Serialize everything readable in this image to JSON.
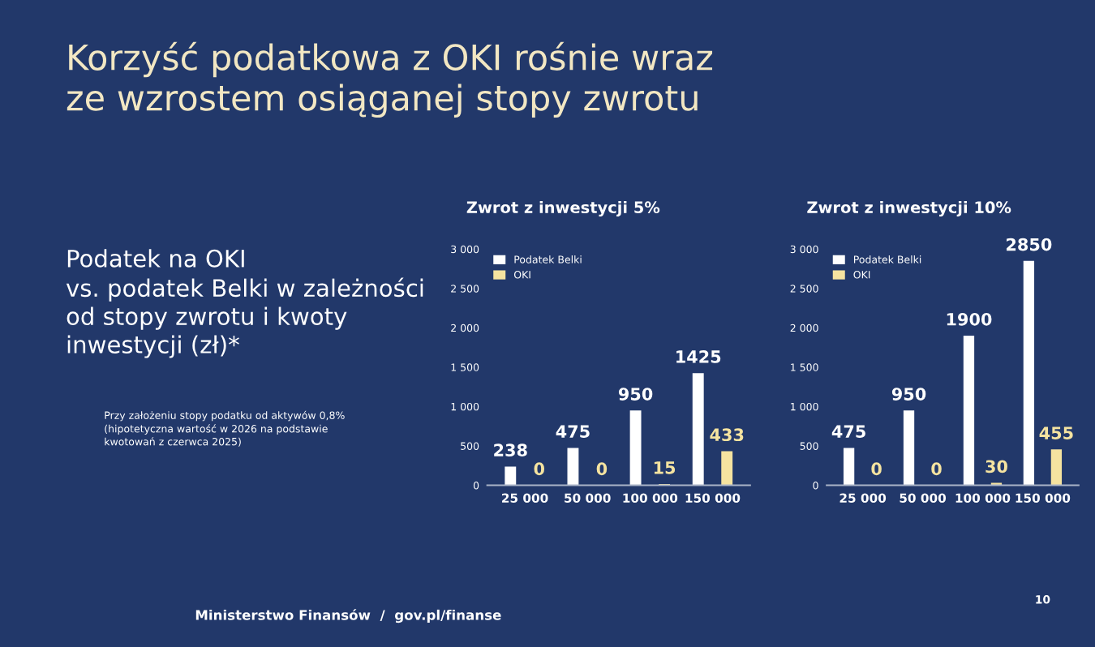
{
  "chart_data": [
    {
      "type": "bar",
      "title": "Zwrot z inwestycji 5%",
      "categories": [
        "25 000",
        "50 000",
        "100 000",
        "150 000"
      ],
      "series": [
        {
          "name": "Podatek Belki",
          "color": "#ffffff",
          "values": [
            238,
            475,
            950,
            1425
          ]
        },
        {
          "name": "OKI",
          "color": "#f5e3a0",
          "values": [
            0,
            0,
            15,
            433
          ]
        }
      ],
      "ylim": [
        0,
        3000
      ],
      "yticks": [
        {
          "value": 0,
          "label": "0"
        },
        {
          "value": 500,
          "label": "500"
        },
        {
          "value": 1000,
          "label": "1 000"
        },
        {
          "value": 1500,
          "label": "1 500"
        },
        {
          "value": 2000,
          "label": "2 000"
        },
        {
          "value": 2500,
          "label": "2 500"
        },
        {
          "value": 3000,
          "label": "3 000"
        }
      ],
      "data_labels": true,
      "legend": "top left",
      "annotations": [
        "Korzyść podatkowa z OKI rośnie wraz ze wzrostem osiąganej stopy zwrotu",
        "Podatek na OKI\nvs. podatek Belki w zależności\nod stopy zwrotu i kwoty\ninwestycji (zł)*",
        "Przy założeniu stopy podatku od aktywów 0,8%\n(hipotetyczna wartość w 2026 na podstawie\nkwotowań z czerwca 2025)",
        "Ministerstwo Finansów  /  gov.pl/finanse",
        "10"
      ]
    },
    {
      "type": "bar",
      "title": "Zwrot z inwestycji 10%",
      "categories": [
        "25 000",
        "50 000",
        "100 000",
        "150 000"
      ],
      "series": [
        {
          "name": "Podatek Belki",
          "color": "#ffffff",
          "values": [
            475,
            950,
            1900,
            2850
          ]
        },
        {
          "name": "OKI",
          "color": "#f5e3a0",
          "values": [
            0,
            0,
            30,
            455
          ]
        }
      ],
      "ylim": [
        0,
        3000
      ],
      "yticks": [
        {
          "value": 0,
          "label": "0"
        },
        {
          "value": 500,
          "label": "500"
        },
        {
          "value": 1000,
          "label": "1 000"
        },
        {
          "value": 1500,
          "label": "1 500"
        },
        {
          "value": 2000,
          "label": "2 000"
        },
        {
          "value": 2500,
          "label": "2 500"
        },
        {
          "value": 3000,
          "label": "3 000"
        }
      ],
      "data_labels": true,
      "legend": "top left"
    }
  ]
}
